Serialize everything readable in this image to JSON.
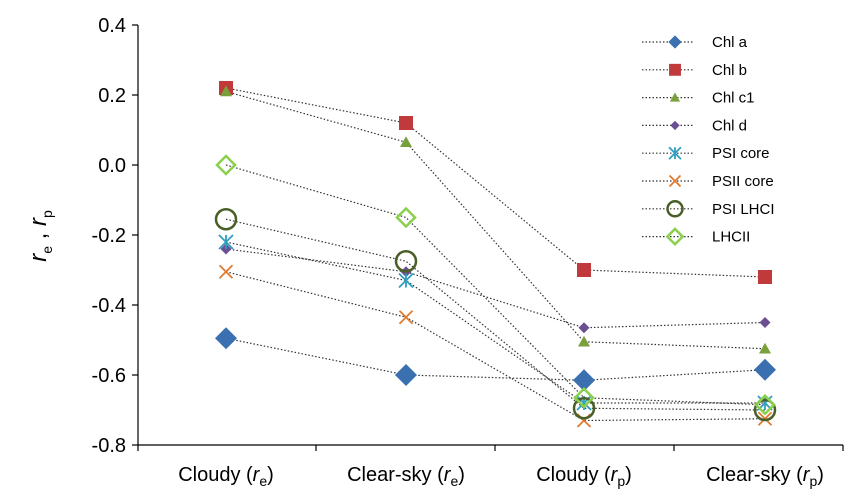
{
  "chart_data": {
    "type": "line",
    "categories": [
      {
        "label": "Cloudy (",
        "sym": "r",
        "sub": "e",
        "close": ")"
      },
      {
        "label": "Clear-sky (",
        "sym": "r",
        "sub": "e",
        "close": ")"
      },
      {
        "label": "Cloudy (",
        "sym": "r",
        "sub": "p",
        "close": ")"
      },
      {
        "label": "Clear-sky (",
        "sym": "r",
        "sub": "p",
        "close": ")"
      }
    ],
    "ylabel": {
      "sym1": "r",
      "sub1": "e",
      "sep": " , ",
      "sym2": "r",
      "sub2": "p"
    },
    "ylim": [
      -0.8,
      0.4
    ],
    "yticks": [
      "0.4",
      "0.2",
      "0.0",
      "-0.2",
      "-0.4",
      "-0.6",
      "-0.8"
    ],
    "ytick_values": [
      0.4,
      0.2,
      0.0,
      -0.2,
      -0.4,
      -0.6,
      -0.8
    ],
    "grid": false,
    "legend_position": "top-right",
    "series": [
      {
        "name": "Chl a",
        "marker": "diamond-large",
        "color": "#3a6fb0",
        "values": [
          -0.495,
          -0.6,
          -0.615,
          -0.585
        ]
      },
      {
        "name": "Chl b",
        "marker": "square",
        "color": "#c0393b",
        "values": [
          0.22,
          0.12,
          -0.3,
          -0.32
        ]
      },
      {
        "name": "Chl c1",
        "marker": "triangle",
        "color": "#7aa03c",
        "values": [
          0.21,
          0.065,
          -0.505,
          -0.525
        ]
      },
      {
        "name": "Chl d",
        "marker": "diamond-small",
        "color": "#6a4f93",
        "values": [
          -0.24,
          -0.305,
          -0.465,
          -0.45
        ]
      },
      {
        "name": "PSI core",
        "marker": "asterisk",
        "color": "#2e9fbf",
        "values": [
          -0.22,
          -0.33,
          -0.68,
          -0.68
        ]
      },
      {
        "name": "PSII core",
        "marker": "x",
        "color": "#e07a2f",
        "values": [
          -0.305,
          -0.435,
          -0.73,
          -0.725
        ]
      },
      {
        "name": "PSI LHCI",
        "marker": "circle-open",
        "color": "#4a5f28",
        "values": [
          -0.155,
          -0.275,
          -0.695,
          -0.7
        ]
      },
      {
        "name": "LHCII",
        "marker": "diamond-open",
        "color": "#8ad04c",
        "values": [
          0.0,
          -0.15,
          -0.665,
          -0.685
        ]
      }
    ]
  }
}
